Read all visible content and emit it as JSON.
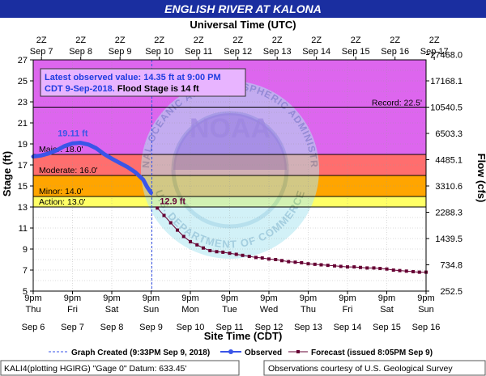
{
  "header": {
    "title": "ENGLISH RIVER AT KALONA",
    "top_axis_title": "Universal Time (UTC)",
    "bottom_axis_title": "Site Time (CDT)",
    "left_axis_title": "Stage (ft)",
    "right_axis_title": "Flow (cfs)"
  },
  "info_box": {
    "line1": "Latest observed value: 14.35 ft at 9:00 PM",
    "line2a": "CDT 9-Sep-2018.",
    "line2b": " Flood Stage is 14 ft"
  },
  "watermark": {
    "noaa": "NOAA",
    "arc_top": "NATIONAL OCEANIC AND ATMOSPHERIC ADMINISTRATION",
    "arc_bottom": "U.S. DEPARTMENT OF COMMERCE"
  },
  "legend": {
    "created": "Graph Created (9:33PM Sep 9, 2018)",
    "observed": "Observed",
    "forecast": "Forecast (issued 8:05PM Sep 9)"
  },
  "footer": {
    "left": "KALI4(plotting HGIRG) \"Gage 0\" Datum: 633.45'",
    "right": "Observations courtesy of U.S. Geological Survey"
  },
  "chart_data": {
    "type": "line",
    "ylim": [
      5,
      27
    ],
    "y_ticks": [
      "5",
      "7",
      "9",
      "11",
      "13",
      "15",
      "17",
      "19",
      "21",
      "23",
      "25",
      "27"
    ],
    "x_ticks_utc": [
      {
        "time": "2Z",
        "date": "Sep 7"
      },
      {
        "time": "2Z",
        "date": "Sep 8"
      },
      {
        "time": "2Z",
        "date": "Sep 9"
      },
      {
        "time": "2Z",
        "date": "Sep 10"
      },
      {
        "time": "2Z",
        "date": "Sep 11"
      },
      {
        "time": "2Z",
        "date": "Sep 12"
      },
      {
        "time": "2Z",
        "date": "Sep 13"
      },
      {
        "time": "2Z",
        "date": "Sep 14"
      },
      {
        "time": "2Z",
        "date": "Sep 15"
      },
      {
        "time": "2Z",
        "date": "Sep 16"
      },
      {
        "time": "2Z",
        "date": "Sep 17"
      }
    ],
    "x_ticks_local": [
      {
        "time": "9pm",
        "day": "Thu",
        "date": "Sep 6"
      },
      {
        "time": "9pm",
        "day": "Fri",
        "date": "Sep 7"
      },
      {
        "time": "9pm",
        "day": "Sat",
        "date": "Sep 8"
      },
      {
        "time": "9pm",
        "day": "Sun",
        "date": "Sep 9"
      },
      {
        "time": "9pm",
        "day": "Mon",
        "date": "Sep 10"
      },
      {
        "time": "9pm",
        "day": "Tue",
        "date": "Sep 11"
      },
      {
        "time": "9pm",
        "day": "Wed",
        "date": "Sep 12"
      },
      {
        "time": "9pm",
        "day": "Thu",
        "date": "Sep 13"
      },
      {
        "time": "9pm",
        "day": "Fri",
        "date": "Sep 14"
      },
      {
        "time": "9pm",
        "day": "Sat",
        "date": "Sep 15"
      },
      {
        "time": "9pm",
        "day": "Sun",
        "date": "Sep 16"
      }
    ],
    "flow_ticks": [
      {
        "stage": 5.0,
        "label": "252.5"
      },
      {
        "stage": 7.5,
        "label": "734.8"
      },
      {
        "stage": 10.0,
        "label": "1439.5"
      },
      {
        "stage": 12.5,
        "label": "2288.3"
      },
      {
        "stage": 15.0,
        "label": "3310.6"
      },
      {
        "stage": 17.5,
        "label": "4485.1"
      },
      {
        "stage": 20.0,
        "label": "6503.3"
      },
      {
        "stage": 22.5,
        "label": "10540.5"
      },
      {
        "stage": 25.0,
        "label": "17168.1"
      },
      {
        "stage": 27.5,
        "label": "27468.0"
      }
    ],
    "flood_categories": [
      {
        "name": "Action",
        "label": "Action: 13.0'",
        "from": 13.0,
        "to": 14.0,
        "color": "#ffff66"
      },
      {
        "name": "Minor",
        "label": "Minor: 14.0'",
        "from": 14.0,
        "to": 16.0,
        "color": "#ffa500"
      },
      {
        "name": "Moderate",
        "label": "Moderate: 16.0'",
        "from": 16.0,
        "to": 18.0,
        "color": "#ff6e6e"
      },
      {
        "name": "Major",
        "label": "Major: 18.0'",
        "from": 18.0,
        "to": 27.0,
        "color": "#dd66ee"
      }
    ],
    "record": {
      "label": "Record: 22.5'",
      "value": 22.5
    },
    "graph_created_x": 3.02,
    "series": [
      {
        "name": "Observed",
        "color": "#3a55e8",
        "peak_label": "19.11 ft",
        "x": [
          0.0,
          0.2,
          0.4,
          0.6,
          0.8,
          1.0,
          1.2,
          1.4,
          1.6,
          1.8,
          2.0,
          2.2,
          2.4,
          2.6,
          2.8,
          2.9,
          3.0
        ],
        "y": [
          17.8,
          17.9,
          18.1,
          18.4,
          18.8,
          19.05,
          19.11,
          18.95,
          18.6,
          18.05,
          17.6,
          17.2,
          16.8,
          16.3,
          15.6,
          14.9,
          14.35
        ]
      },
      {
        "name": "Forecast",
        "color": "#660033",
        "start_label": "12.9 ft",
        "x": [
          3.16,
          3.33,
          3.5,
          3.67,
          3.83,
          4.0,
          4.17,
          4.33,
          4.5,
          4.67,
          4.83,
          5.0,
          5.17,
          5.33,
          5.5,
          5.67,
          5.83,
          6.0,
          6.17,
          6.33,
          6.5,
          6.67,
          6.83,
          7.0,
          7.17,
          7.33,
          7.5,
          7.67,
          7.83,
          8.0,
          8.17,
          8.33,
          8.5,
          8.67,
          8.83,
          9.0,
          9.17,
          9.33,
          9.5,
          9.67,
          9.83,
          10.0
        ],
        "y": [
          12.9,
          12.2,
          11.5,
          10.8,
          10.2,
          9.7,
          9.4,
          9.1,
          8.85,
          8.75,
          8.7,
          8.6,
          8.5,
          8.4,
          8.3,
          8.2,
          8.15,
          8.05,
          8.0,
          7.9,
          7.8,
          7.75,
          7.7,
          7.6,
          7.55,
          7.5,
          7.45,
          7.4,
          7.35,
          7.3,
          7.3,
          7.25,
          7.2,
          7.2,
          7.15,
          7.1,
          7.0,
          6.95,
          6.9,
          6.85,
          6.8,
          6.8
        ]
      }
    ]
  }
}
